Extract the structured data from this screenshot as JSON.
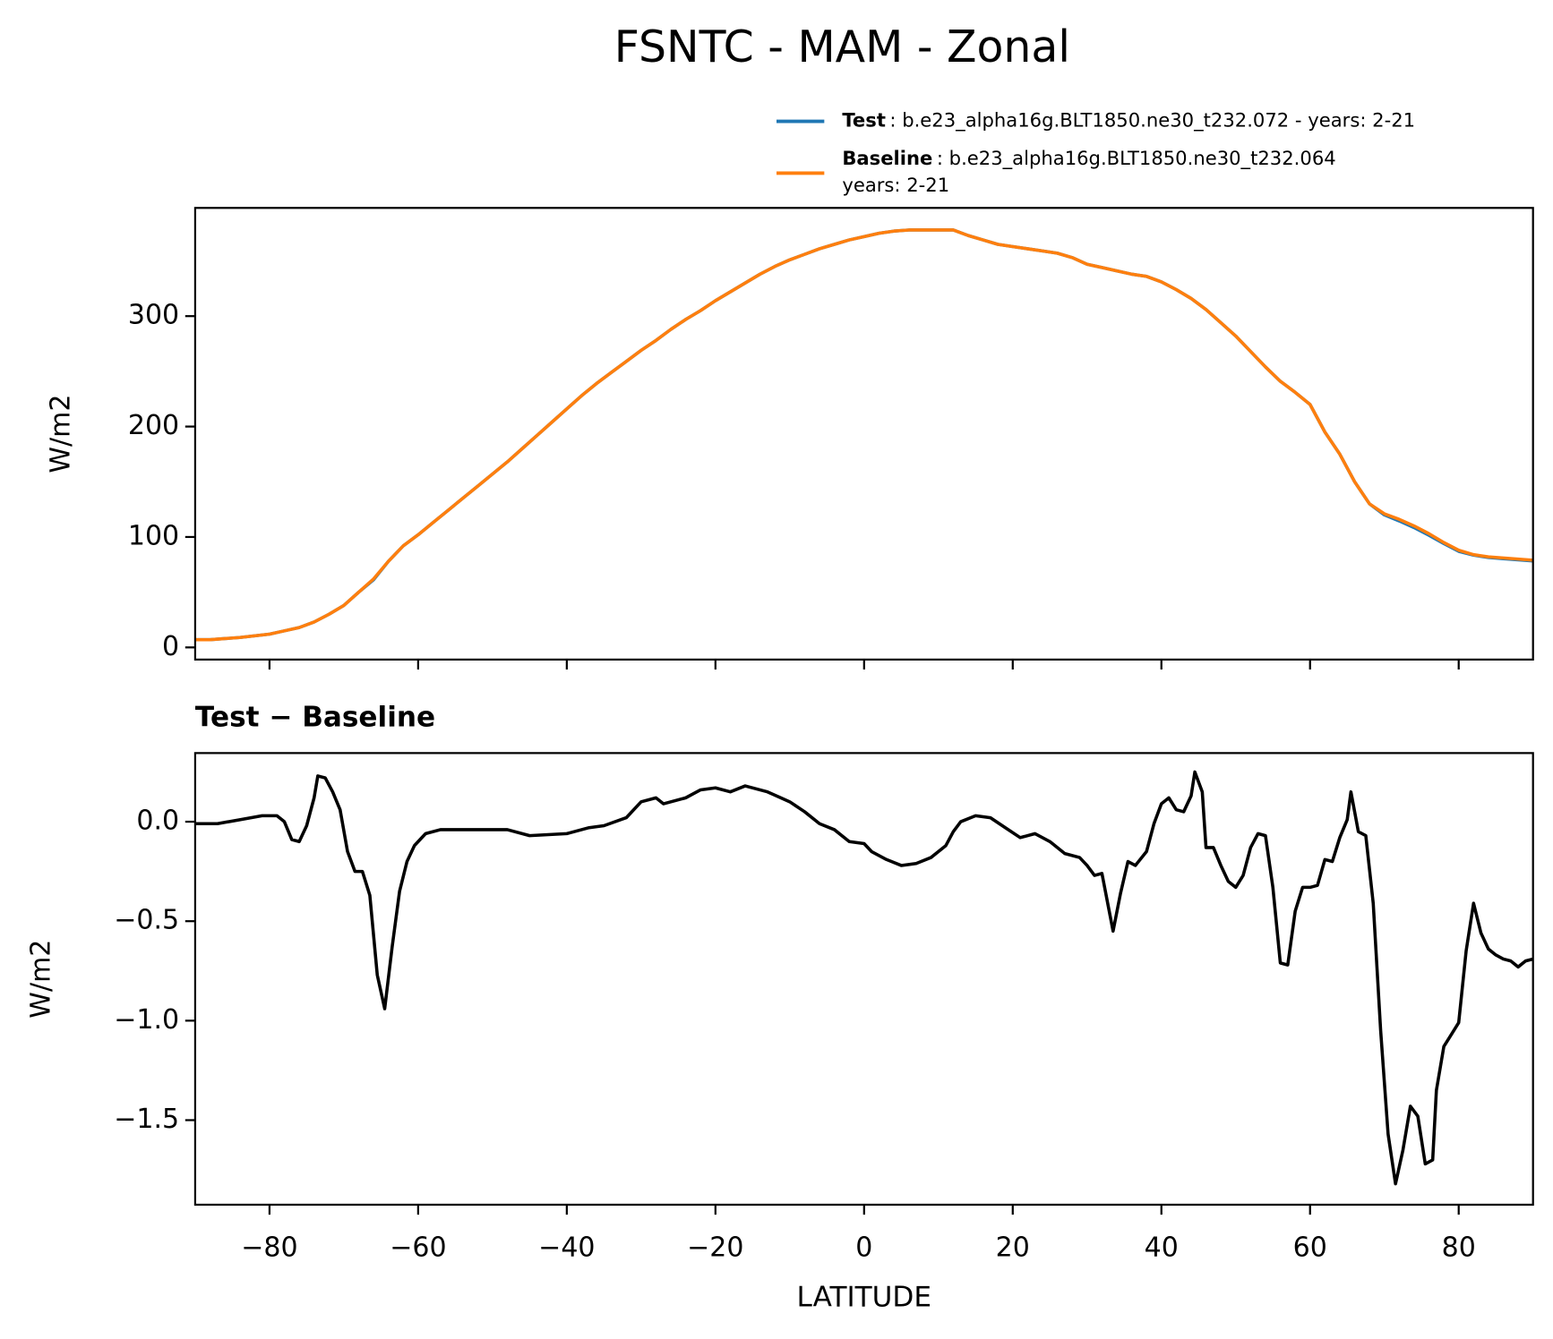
{
  "chart_data": [
    {
      "type": "line",
      "title": "FSNTC - MAM - Zonal",
      "ylabel": "W/m2",
      "x": [
        -90,
        -88,
        -86,
        -84,
        -82,
        -80,
        -78,
        -76,
        -74,
        -72,
        -70,
        -68,
        -66,
        -64,
        -62,
        -60,
        -58,
        -56,
        -54,
        -52,
        -50,
        -48,
        -46,
        -44,
        -42,
        -40,
        -38,
        -36,
        -34,
        -32,
        -30,
        -28,
        -26,
        -24,
        -22,
        -20,
        -18,
        -16,
        -14,
        -12,
        -10,
        -8,
        -6,
        -4,
        -2,
        0,
        2,
        4,
        6,
        8,
        10,
        12,
        14,
        16,
        18,
        20,
        22,
        24,
        26,
        28,
        30,
        32,
        34,
        36,
        38,
        40,
        42,
        44,
        46,
        48,
        50,
        52,
        54,
        56,
        58,
        60,
        62,
        64,
        66,
        68,
        70,
        72,
        74,
        76,
        78,
        80,
        82,
        84,
        86,
        88,
        90
      ],
      "series": [
        {
          "name": "Test",
          "description": [
            ": b.e23_alpha16g.BLT1850.ne30_t232.072 - years: 2-21"
          ],
          "color": "#1f77b4",
          "values": [
            7,
            7,
            8,
            9,
            10.5,
            12,
            15,
            18,
            23,
            30,
            38,
            50,
            61.2,
            78,
            92,
            102,
            113,
            124,
            135,
            146,
            157,
            168,
            180,
            192,
            204,
            216,
            228,
            239,
            249,
            259,
            269,
            278,
            288,
            297,
            305,
            314,
            322,
            330,
            338,
            345,
            351,
            356,
            361,
            365,
            369,
            372,
            375,
            377,
            378,
            378,
            378,
            378,
            373,
            369,
            365,
            363,
            361,
            359,
            357,
            353,
            347,
            344,
            341,
            338,
            336,
            331,
            324,
            316,
            306,
            294,
            282,
            268,
            254,
            241,
            231,
            220,
            195,
            175,
            150,
            130,
            120,
            114.5,
            108.5,
            101.5,
            94,
            87,
            83.5,
            81.4,
            80.3,
            79.3,
            78.3
          ]
        },
        {
          "name": "Baseline",
          "description": [
            ": b.e23_alpha16g.BLT1850.ne30_t232.064",
            "years: 2-21"
          ],
          "color": "#ff7f0e",
          "values": [
            7,
            7,
            8,
            9,
            10.5,
            12,
            15,
            18,
            23,
            30,
            38,
            50,
            62,
            78,
            92,
            102,
            113,
            124,
            135,
            146,
            157,
            168,
            180,
            192,
            204,
            216,
            228,
            239,
            249,
            259,
            269,
            278,
            288,
            297,
            305,
            314,
            322,
            330,
            338,
            345,
            351,
            356,
            361,
            365,
            369,
            372,
            375,
            377,
            378,
            378,
            378,
            378,
            373,
            369,
            365,
            363,
            361,
            359,
            357,
            353,
            347,
            344,
            341,
            338,
            336,
            331,
            324,
            316,
            306,
            294,
            282,
            268,
            254,
            241,
            231,
            220,
            195,
            175,
            150,
            130,
            121,
            116,
            110,
            103,
            95,
            88,
            84,
            82,
            81,
            80,
            79
          ]
        }
      ],
      "xlim": [
        -90,
        90
      ],
      "xticks": [
        -80,
        -60,
        -40,
        -20,
        0,
        20,
        40,
        60,
        80
      ],
      "ylim": [
        -11,
        398
      ],
      "yticks": [
        0,
        100,
        200,
        300
      ],
      "grid": false,
      "legend": "upper right"
    },
    {
      "type": "line",
      "title": "Test − Baseline",
      "ylabel": "W/m2",
      "xlabel": "LATITUDE",
      "x": [
        -90,
        -87,
        -84,
        -81,
        -79,
        -78,
        -77,
        -76,
        -75,
        -74,
        -73.5,
        -72.5,
        -71.5,
        -70.5,
        -69.5,
        -68.5,
        -67.5,
        -66.5,
        -65.5,
        -64.5,
        -63.5,
        -62.5,
        -61.5,
        -60.5,
        -59,
        -57,
        -52,
        -48,
        -45,
        -40,
        -37,
        -35,
        -32,
        -30,
        -28,
        -27,
        -24,
        -22,
        -20,
        -18,
        -16,
        -13,
        -10,
        -8,
        -6,
        -4,
        -2,
        0,
        1,
        3,
        5,
        7,
        9,
        11,
        12,
        13,
        15,
        17,
        19,
        21,
        23,
        25,
        27,
        29,
        30,
        31,
        32,
        33.5,
        34.5,
        35.5,
        36.5,
        38,
        39,
        40,
        41,
        42,
        43,
        44,
        44.5,
        45.5,
        46,
        47,
        48,
        49,
        50,
        51,
        52,
        53,
        54,
        55,
        56,
        57,
        58,
        59,
        60,
        61,
        62,
        63,
        64,
        65,
        65.5,
        66.5,
        67.5,
        68.5,
        69.5,
        70.5,
        71.5,
        72.5,
        73.5,
        74.5,
        75.5,
        76.5,
        77,
        78,
        79,
        80,
        81,
        82,
        83,
        84,
        85,
        86,
        87,
        88,
        89,
        90
      ],
      "series": [
        {
          "color": "#000000",
          "values": [
            -0.01,
            -0.01,
            0.01,
            0.03,
            0.03,
            0.0,
            -0.09,
            -0.1,
            -0.02,
            0.12,
            0.23,
            0.22,
            0.15,
            0.06,
            -0.15,
            -0.25,
            -0.25,
            -0.37,
            -0.77,
            -0.94,
            -0.63,
            -0.35,
            -0.2,
            -0.12,
            -0.06,
            -0.04,
            -0.04,
            -0.04,
            -0.07,
            -0.06,
            -0.03,
            -0.02,
            0.02,
            0.1,
            0.12,
            0.09,
            0.12,
            0.16,
            0.17,
            0.15,
            0.18,
            0.15,
            0.1,
            0.05,
            -0.01,
            -0.04,
            -0.1,
            -0.11,
            -0.15,
            -0.19,
            -0.22,
            -0.21,
            -0.18,
            -0.12,
            -0.05,
            0.0,
            0.03,
            0.02,
            -0.03,
            -0.08,
            -0.06,
            -0.1,
            -0.16,
            -0.18,
            -0.22,
            -0.27,
            -0.26,
            -0.55,
            -0.36,
            -0.2,
            -0.22,
            -0.15,
            -0.01,
            0.09,
            0.12,
            0.06,
            0.05,
            0.13,
            0.25,
            0.15,
            -0.13,
            -0.13,
            -0.22,
            -0.3,
            -0.33,
            -0.27,
            -0.13,
            -0.06,
            -0.07,
            -0.33,
            -0.71,
            -0.72,
            -0.45,
            -0.33,
            -0.33,
            -0.32,
            -0.19,
            -0.2,
            -0.08,
            0.01,
            0.15,
            -0.05,
            -0.07,
            -0.41,
            -1.05,
            -1.57,
            -1.82,
            -1.65,
            -1.43,
            -1.48,
            -1.72,
            -1.7,
            -1.35,
            -1.13,
            -1.07,
            -1.01,
            -0.65,
            -0.41,
            -0.56,
            -0.64,
            -0.67,
            -0.69,
            -0.7,
            -0.73,
            -0.7,
            -0.69
          ]
        }
      ],
      "xlim": [
        -90,
        90
      ],
      "xticks": [
        {
          "value": -80,
          "label": "−80"
        },
        {
          "value": -60,
          "label": "−60"
        },
        {
          "value": -40,
          "label": "−40"
        },
        {
          "value": -20,
          "label": "−20"
        },
        0,
        20,
        40,
        60,
        80
      ],
      "ylim": [
        -1.925,
        0.345
      ],
      "yticks": [
        {
          "value": 0,
          "label": "0.0"
        },
        {
          "value": -0.5,
          "label": "−0.5"
        },
        {
          "value": -1,
          "label": "−1.0"
        },
        {
          "value": -1.5,
          "label": "−1.5"
        }
      ],
      "grid": false
    }
  ]
}
